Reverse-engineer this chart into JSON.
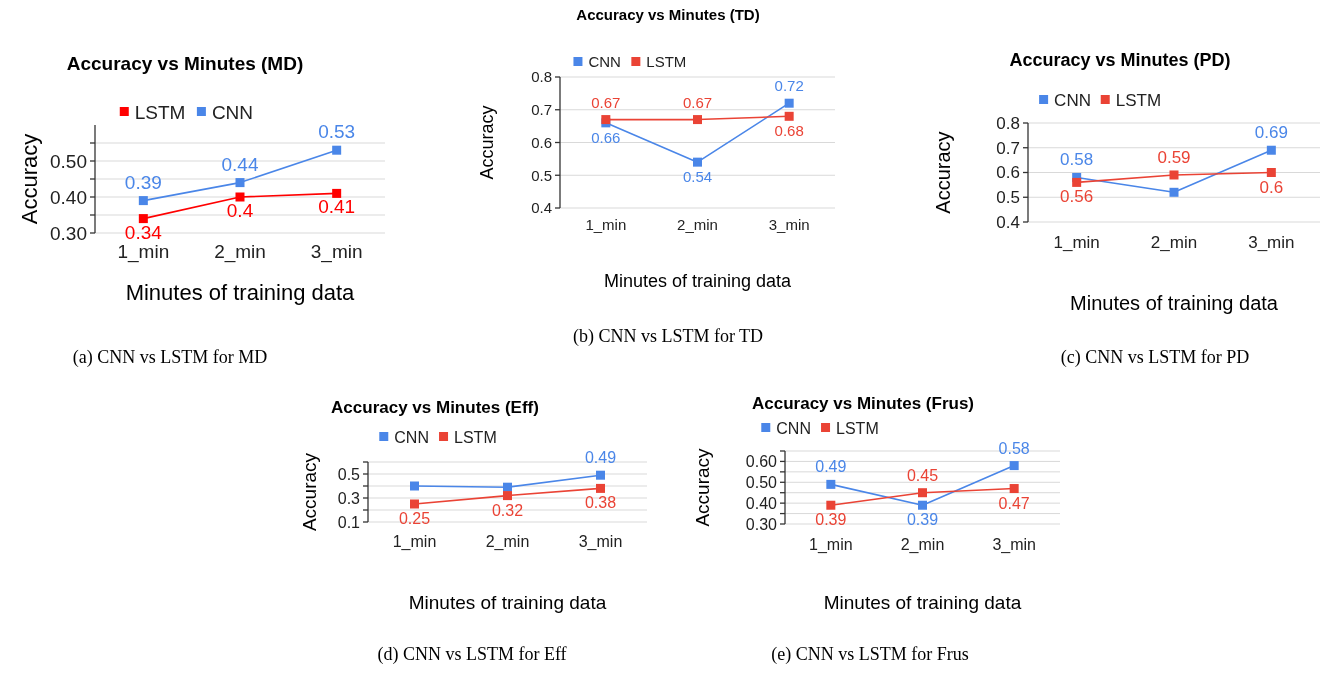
{
  "chart_data": [
    {
      "type": "line",
      "title": "Accuracy vs Minutes (MD)",
      "xlabel": "Minutes of training data",
      "ylabel": "Accuracy",
      "annotations": [
        "(a) CNN vs LSTM for MD"
      ],
      "categories": [
        "1_min",
        "2_min",
        "3_min"
      ],
      "ylim": [
        0.3,
        0.6
      ],
      "yticks": [
        {
          "value": 0.3,
          "label": "0.30"
        },
        {
          "value": 0.35,
          "label": null
        },
        {
          "value": 0.4,
          "label": "0.40"
        },
        {
          "value": 0.45,
          "label": null
        },
        {
          "value": 0.5,
          "label": "0.50"
        },
        {
          "value": 0.55,
          "label": null
        }
      ],
      "grid": "y",
      "legend": "top",
      "marker": "square",
      "series": [
        {
          "name": "LSTM",
          "color": "#ff0000",
          "values": [
            0.34,
            0.4,
            0.41
          ],
          "value_labels": [
            "0.34",
            "0.4",
            "0.41"
          ]
        },
        {
          "name": "CNN",
          "color": "#4a86e8",
          "values": [
            0.39,
            0.44,
            0.53
          ],
          "value_labels": [
            "0.39",
            "0.44",
            "0.53"
          ]
        }
      ]
    },
    {
      "type": "line",
      "title": "Accuracy vs Minutes (TD)",
      "xlabel": "Minutes of training data",
      "ylabel": "Accuracy",
      "annotations": [
        "(b) CNN vs LSTM for TD"
      ],
      "categories": [
        "1_min",
        "2_min",
        "3_min"
      ],
      "ylim": [
        0.4,
        0.8
      ],
      "yticks": [
        0.4,
        0.5,
        0.6,
        0.7,
        0.8
      ],
      "grid": "y",
      "legend": "top",
      "marker": "square",
      "series": [
        {
          "name": "CNN",
          "color": "#4a86e8",
          "values": [
            0.66,
            0.54,
            0.72
          ],
          "value_labels": [
            "0.66",
            "0.54",
            "0.72"
          ]
        },
        {
          "name": "LSTM",
          "color": "#ea4335",
          "values": [
            0.67,
            0.67,
            0.68
          ],
          "value_labels": [
            "0.67",
            "0.67",
            "0.68"
          ]
        }
      ]
    },
    {
      "type": "line",
      "title": "Accuracy vs Minutes (PD)",
      "xlabel": "Minutes of training data",
      "ylabel": "Accuracy",
      "annotations": [
        "(c) CNN vs LSTM for PD"
      ],
      "categories": [
        "1_min",
        "2_min",
        "3_min"
      ],
      "ylim": [
        0.4,
        0.8
      ],
      "yticks": [
        0.4,
        0.5,
        0.6,
        0.7,
        0.8
      ],
      "grid": "y",
      "legend": "top",
      "marker": "square",
      "series": [
        {
          "name": "CNN",
          "color": "#4a86e8",
          "values": [
            0.58,
            0.52,
            0.69
          ],
          "value_labels": [
            "0.58",
            null,
            "0.69"
          ]
        },
        {
          "name": "LSTM",
          "color": "#ea4335",
          "values": [
            0.56,
            0.59,
            0.6
          ],
          "value_labels": [
            "0.56",
            "0.59",
            "0.6"
          ]
        }
      ]
    },
    {
      "type": "line",
      "title": "Accuracy vs Minutes (Eff)",
      "xlabel": "Minutes of training data",
      "ylabel": "Accuracy",
      "annotations": [
        "(d) CNN vs LSTM for Eff"
      ],
      "categories": [
        "1_min",
        "2_min",
        "3_min"
      ],
      "ylim": [
        0.1,
        0.6
      ],
      "yticks": [
        0.1,
        {
          "value": 0.2,
          "label": null
        },
        0.3,
        {
          "value": 0.4,
          "label": null
        },
        0.5,
        {
          "value": 0.6,
          "label": null
        }
      ],
      "grid": "y",
      "legend": "top",
      "marker": "square",
      "series": [
        {
          "name": "CNN",
          "color": "#4a86e8",
          "values": [
            0.4,
            0.39,
            0.49
          ],
          "value_labels": [
            null,
            null,
            "0.49"
          ]
        },
        {
          "name": "LSTM",
          "color": "#ea4335",
          "values": [
            0.25,
            0.32,
            0.38
          ],
          "value_labels": [
            "0.25",
            "0.32",
            "0.38"
          ]
        }
      ]
    },
    {
      "type": "line",
      "title": "Accuracy vs Minutes (Frus)",
      "xlabel": "Minutes of training data",
      "ylabel": "Accuracy",
      "annotations": [
        "(e) CNN vs LSTM for Frus"
      ],
      "categories": [
        "1_min",
        "2_min",
        "3_min"
      ],
      "ylim": [
        0.3,
        0.65
      ],
      "yticks": [
        {
          "value": 0.3,
          "label": "0.30"
        },
        {
          "value": 0.35,
          "label": null
        },
        {
          "value": 0.4,
          "label": "0.40"
        },
        {
          "value": 0.45,
          "label": null
        },
        {
          "value": 0.5,
          "label": "0.50"
        },
        {
          "value": 0.55,
          "label": null
        },
        {
          "value": 0.6,
          "label": "0.60"
        },
        {
          "value": 0.65,
          "label": null
        }
      ],
      "grid": "y",
      "legend": "top",
      "marker": "square",
      "series": [
        {
          "name": "CNN",
          "color": "#4a86e8",
          "values": [
            0.49,
            0.39,
            0.58
          ],
          "value_labels": [
            "0.49",
            "0.39",
            "0.58"
          ]
        },
        {
          "name": "LSTM",
          "color": "#ea4335",
          "values": [
            0.39,
            0.45,
            0.47
          ],
          "value_labels": [
            "0.39",
            "0.45",
            "0.47"
          ]
        }
      ]
    }
  ]
}
